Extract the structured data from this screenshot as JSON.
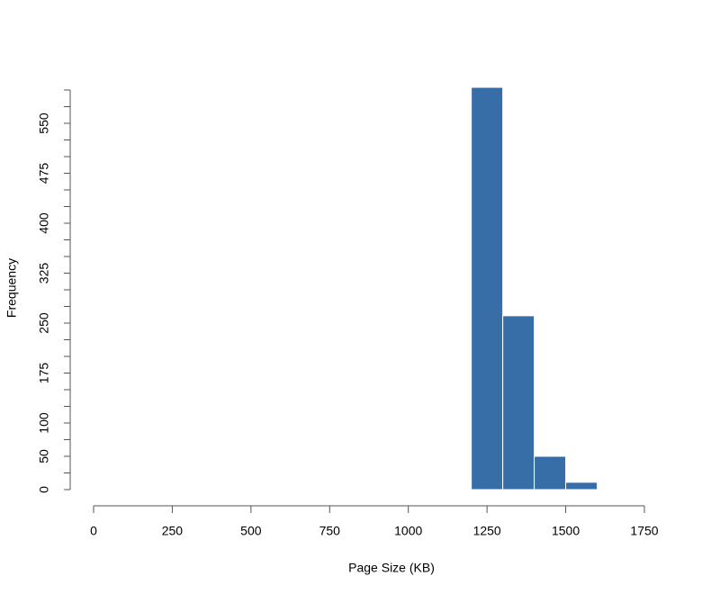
{
  "chart_data": {
    "type": "histogram",
    "xlabel": "Page Size (KB)",
    "ylabel": "Frequency",
    "bins": [
      1000,
      1100,
      1200,
      1300,
      1400,
      1500,
      1600,
      1700
    ],
    "values": [
      1,
      0,
      604,
      261,
      50,
      11,
      1
    ],
    "color": "#376ea8",
    "xlim": [
      0,
      1750
    ],
    "xticks": [
      0,
      250,
      500,
      750,
      1000,
      1250,
      1500,
      1750
    ],
    "ylim": [
      0,
      600
    ],
    "yticks": [
      0,
      50,
      100,
      175,
      250,
      325,
      400,
      475,
      550
    ],
    "y_minor_ticks": [
      25,
      75,
      125,
      150,
      200,
      225,
      275,
      300,
      350,
      375,
      425,
      450,
      500,
      525,
      575,
      600
    ],
    "grid": false
  }
}
